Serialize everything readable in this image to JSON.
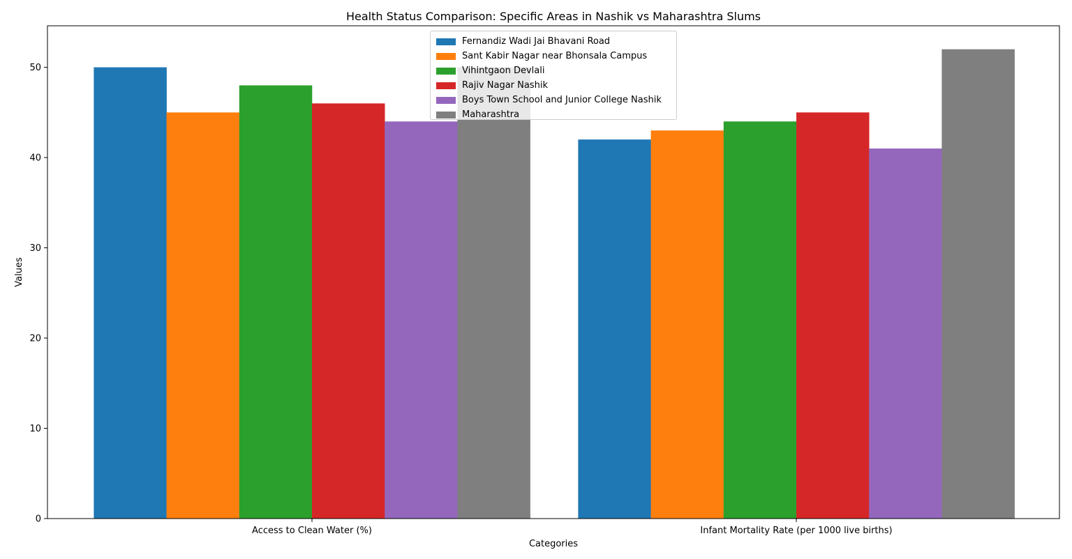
{
  "chart_data": {
    "type": "bar",
    "title": "Health Status Comparison: Specific Areas in Nashik vs Maharashtra Slums",
    "xlabel": "Categories",
    "ylabel": "Values",
    "categories": [
      "Access to Clean Water (%)",
      "Infant Mortality Rate (per 1000 live births)"
    ],
    "ylim": [
      0,
      54.6
    ],
    "yticks": [
      0,
      10,
      20,
      30,
      40,
      50
    ],
    "grid": false,
    "legend_position": "upper-center",
    "series": [
      {
        "name": "Fernandiz Wadi Jai Bhavani Road",
        "values": [
          50,
          42
        ],
        "color": "#1f77b4"
      },
      {
        "name": "Sant Kabir Nagar near Bhonsala Campus",
        "values": [
          45,
          43
        ],
        "color": "#ff7f0e"
      },
      {
        "name": "Vihintgaon Devlali",
        "values": [
          48,
          44
        ],
        "color": "#2ca02c"
      },
      {
        "name": "Rajiv Nagar Nashik",
        "values": [
          46,
          45
        ],
        "color": "#d62728"
      },
      {
        "name": "Boys Town School and Junior College Nashik",
        "values": [
          44,
          41
        ],
        "color": "#9467bd"
      },
      {
        "name": "Maharashtra",
        "values": [
          50,
          52
        ],
        "color": "#7f7f7f"
      }
    ]
  }
}
